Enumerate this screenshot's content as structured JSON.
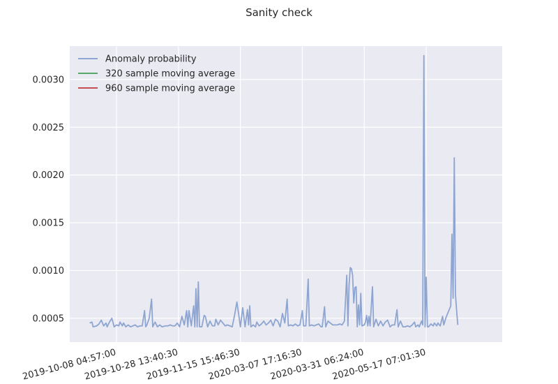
{
  "chart_data": {
    "type": "line",
    "title": "Sanity check",
    "xlabel": "",
    "ylabel": "",
    "ylim": [
      0.00025,
      0.00335
    ],
    "yticks": [
      {
        "value": 0.0005,
        "label": "0.0005"
      },
      {
        "value": 0.001,
        "label": "0.0010"
      },
      {
        "value": 0.0015,
        "label": "0.0015"
      },
      {
        "value": 0.002,
        "label": "0.0020"
      },
      {
        "value": 0.0025,
        "label": "0.0025"
      },
      {
        "value": 0.003,
        "label": "0.0030"
      }
    ],
    "x_index_range": [
      -10,
      360
    ],
    "xticks": [
      {
        "index": 30,
        "label": "2019-10-08 04:57:00"
      },
      {
        "index": 83,
        "label": "2019-10-28 13:40:30"
      },
      {
        "index": 136,
        "label": "2019-11-15 15:46:30"
      },
      {
        "index": 189,
        "label": "2020-03-07 17:16:30"
      },
      {
        "index": 242,
        "label": "2020-03-31 06:24:00"
      },
      {
        "index": 295,
        "label": "2020-05-17 07:01:30"
      }
    ],
    "grid": true,
    "legend_position": "upper-left",
    "series": [
      {
        "name": "Anomaly probability",
        "color": "#8da5d0",
        "points": [
          [
            7,
            0.00045
          ],
          [
            9,
            0.00046
          ],
          [
            10,
            0.00041
          ],
          [
            13,
            0.00042
          ],
          [
            15,
            0.00044
          ],
          [
            17,
            0.00048
          ],
          [
            19,
            0.00042
          ],
          [
            21,
            0.00045
          ],
          [
            22,
            0.00041
          ],
          [
            24,
            0.00046
          ],
          [
            26,
            0.0005
          ],
          [
            28,
            0.00041
          ],
          [
            30,
            0.00043
          ],
          [
            32,
            0.00042
          ],
          [
            33,
            0.00046
          ],
          [
            35,
            0.00042
          ],
          [
            36,
            0.00045
          ],
          [
            38,
            0.00041
          ],
          [
            40,
            0.00043
          ],
          [
            42,
            0.00041
          ],
          [
            44,
            0.00042
          ],
          [
            46,
            0.00043
          ],
          [
            48,
            0.00041
          ],
          [
            50,
            0.00042
          ],
          [
            52,
            0.00042
          ],
          [
            54,
            0.00058
          ],
          [
            55,
            0.00041
          ],
          [
            56,
            0.00043
          ],
          [
            58,
            0.0005
          ],
          [
            60,
            0.0007
          ],
          [
            61,
            0.00041
          ],
          [
            63,
            0.00046
          ],
          [
            65,
            0.00041
          ],
          [
            67,
            0.00043
          ],
          [
            69,
            0.00041
          ],
          [
            72,
            0.00042
          ],
          [
            74,
            0.00042
          ],
          [
            76,
            0.00043
          ],
          [
            78,
            0.00042
          ],
          [
            80,
            0.00042
          ],
          [
            82,
            0.00045
          ],
          [
            84,
            0.00041
          ],
          [
            86,
            0.00052
          ],
          [
            88,
            0.00043
          ],
          [
            90,
            0.00058
          ],
          [
            91,
            0.00041
          ],
          [
            92,
            0.00058
          ],
          [
            94,
            0.00042
          ],
          [
            96,
            0.00063
          ],
          [
            97,
            0.00041
          ],
          [
            98,
            0.00081
          ],
          [
            99,
            0.00041
          ],
          [
            100,
            0.00088
          ],
          [
            101,
            0.00041
          ],
          [
            103,
            0.00041
          ],
          [
            105,
            0.00053
          ],
          [
            106,
            0.00052
          ],
          [
            108,
            0.00041
          ],
          [
            110,
            0.00047
          ],
          [
            112,
            0.00042
          ],
          [
            114,
            0.00042
          ],
          [
            115,
            0.00049
          ],
          [
            117,
            0.00043
          ],
          [
            119,
            0.00048
          ],
          [
            121,
            0.00045
          ],
          [
            123,
            0.00042
          ],
          [
            125,
            0.00043
          ],
          [
            127,
            0.00042
          ],
          [
            129,
            0.00041
          ],
          [
            131,
            0.00053
          ],
          [
            133,
            0.00067
          ],
          [
            135,
            0.0005
          ],
          [
            136,
            0.00041
          ],
          [
            138,
            0.00061
          ],
          [
            140,
            0.00041
          ],
          [
            142,
            0.00059
          ],
          [
            143,
            0.00043
          ],
          [
            144,
            0.00063
          ],
          [
            145,
            0.00041
          ],
          [
            147,
            0.00043
          ],
          [
            149,
            0.00041
          ],
          [
            150,
            0.00046
          ],
          [
            152,
            0.00042
          ],
          [
            154,
            0.00044
          ],
          [
            156,
            0.00047
          ],
          [
            158,
            0.00043
          ],
          [
            160,
            0.00045
          ],
          [
            162,
            0.00048
          ],
          [
            164,
            0.00042
          ],
          [
            166,
            0.00049
          ],
          [
            168,
            0.00047
          ],
          [
            170,
            0.00041
          ],
          [
            172,
            0.00055
          ],
          [
            174,
            0.00045
          ],
          [
            176,
            0.0007
          ],
          [
            177,
            0.00042
          ],
          [
            179,
            0.00043
          ],
          [
            181,
            0.00042
          ],
          [
            183,
            0.00044
          ],
          [
            185,
            0.00042
          ],
          [
            187,
            0.00043
          ],
          [
            189,
            0.00058
          ],
          [
            190,
            0.00042
          ],
          [
            192,
            0.00042
          ],
          [
            194,
            0.00091
          ],
          [
            195,
            0.00042
          ],
          [
            197,
            0.00043
          ],
          [
            199,
            0.00042
          ],
          [
            201,
            0.00043
          ],
          [
            203,
            0.00044
          ],
          [
            205,
            0.00041
          ],
          [
            206,
            0.00041
          ],
          [
            208,
            0.00062
          ],
          [
            209,
            0.00041
          ],
          [
            211,
            0.00047
          ],
          [
            213,
            0.00045
          ],
          [
            215,
            0.00043
          ],
          [
            217,
            0.00043
          ],
          [
            219,
            0.00043
          ],
          [
            221,
            0.00044
          ],
          [
            223,
            0.00043
          ],
          [
            225,
            0.00047
          ],
          [
            227,
            0.00095
          ],
          [
            228,
            0.00042
          ],
          [
            229,
            0.00085
          ],
          [
            230,
            0.00103
          ],
          [
            231,
            0.00102
          ],
          [
            232,
            0.00095
          ],
          [
            233,
            0.00066
          ],
          [
            234,
            0.00082
          ],
          [
            235,
            0.00083
          ],
          [
            236,
            0.00041
          ],
          [
            237,
            0.00064
          ],
          [
            238,
            0.00043
          ],
          [
            239,
            0.00076
          ],
          [
            240,
            0.00042
          ],
          [
            242,
            0.00043
          ],
          [
            243,
            0.00046
          ],
          [
            244,
            0.00053
          ],
          [
            245,
            0.00042
          ],
          [
            246,
            0.00052
          ],
          [
            247,
            0.00042
          ],
          [
            249,
            0.00083
          ],
          [
            250,
            0.00041
          ],
          [
            252,
            0.00049
          ],
          [
            254,
            0.00042
          ],
          [
            256,
            0.00047
          ],
          [
            258,
            0.00042
          ],
          [
            260,
            0.00046
          ],
          [
            262,
            0.00048
          ],
          [
            264,
            0.00041
          ],
          [
            266,
            0.00043
          ],
          [
            268,
            0.00043
          ],
          [
            270,
            0.00059
          ],
          [
            271,
            0.00041
          ],
          [
            273,
            0.00047
          ],
          [
            275,
            0.00041
          ],
          [
            277,
            0.00041
          ],
          [
            279,
            0.00042
          ],
          [
            281,
            0.00041
          ],
          [
            283,
            0.00043
          ],
          [
            285,
            0.00046
          ],
          [
            286,
            0.00041
          ],
          [
            288,
            0.00043
          ],
          [
            289,
            0.00041
          ],
          [
            291,
            0.00047
          ],
          [
            292,
            0.00043
          ],
          [
            293,
            0.00325
          ],
          [
            294,
            0.00041
          ],
          [
            295,
            0.00093
          ],
          [
            296,
            0.00041
          ],
          [
            297,
            0.00041
          ],
          [
            299,
            0.00044
          ],
          [
            301,
            0.00042
          ],
          [
            302,
            0.00045
          ],
          [
            304,
            0.00042
          ],
          [
            305,
            0.00045
          ],
          [
            307,
            0.00042
          ],
          [
            309,
            0.00052
          ],
          [
            310,
            0.00043
          ],
          [
            312,
            0.00051
          ],
          [
            314,
            0.00057
          ],
          [
            316,
            0.00063
          ],
          [
            317,
            0.00138
          ],
          [
            318,
            0.00071
          ],
          [
            319,
            0.00218
          ],
          [
            320,
            0.00075
          ],
          [
            321,
            0.00058
          ],
          [
            322,
            0.00043
          ]
        ]
      },
      {
        "name": "320 sample moving average",
        "color": "#55a868",
        "points": []
      },
      {
        "name": "960 sample moving average",
        "color": "#c44e52",
        "points": []
      }
    ]
  }
}
